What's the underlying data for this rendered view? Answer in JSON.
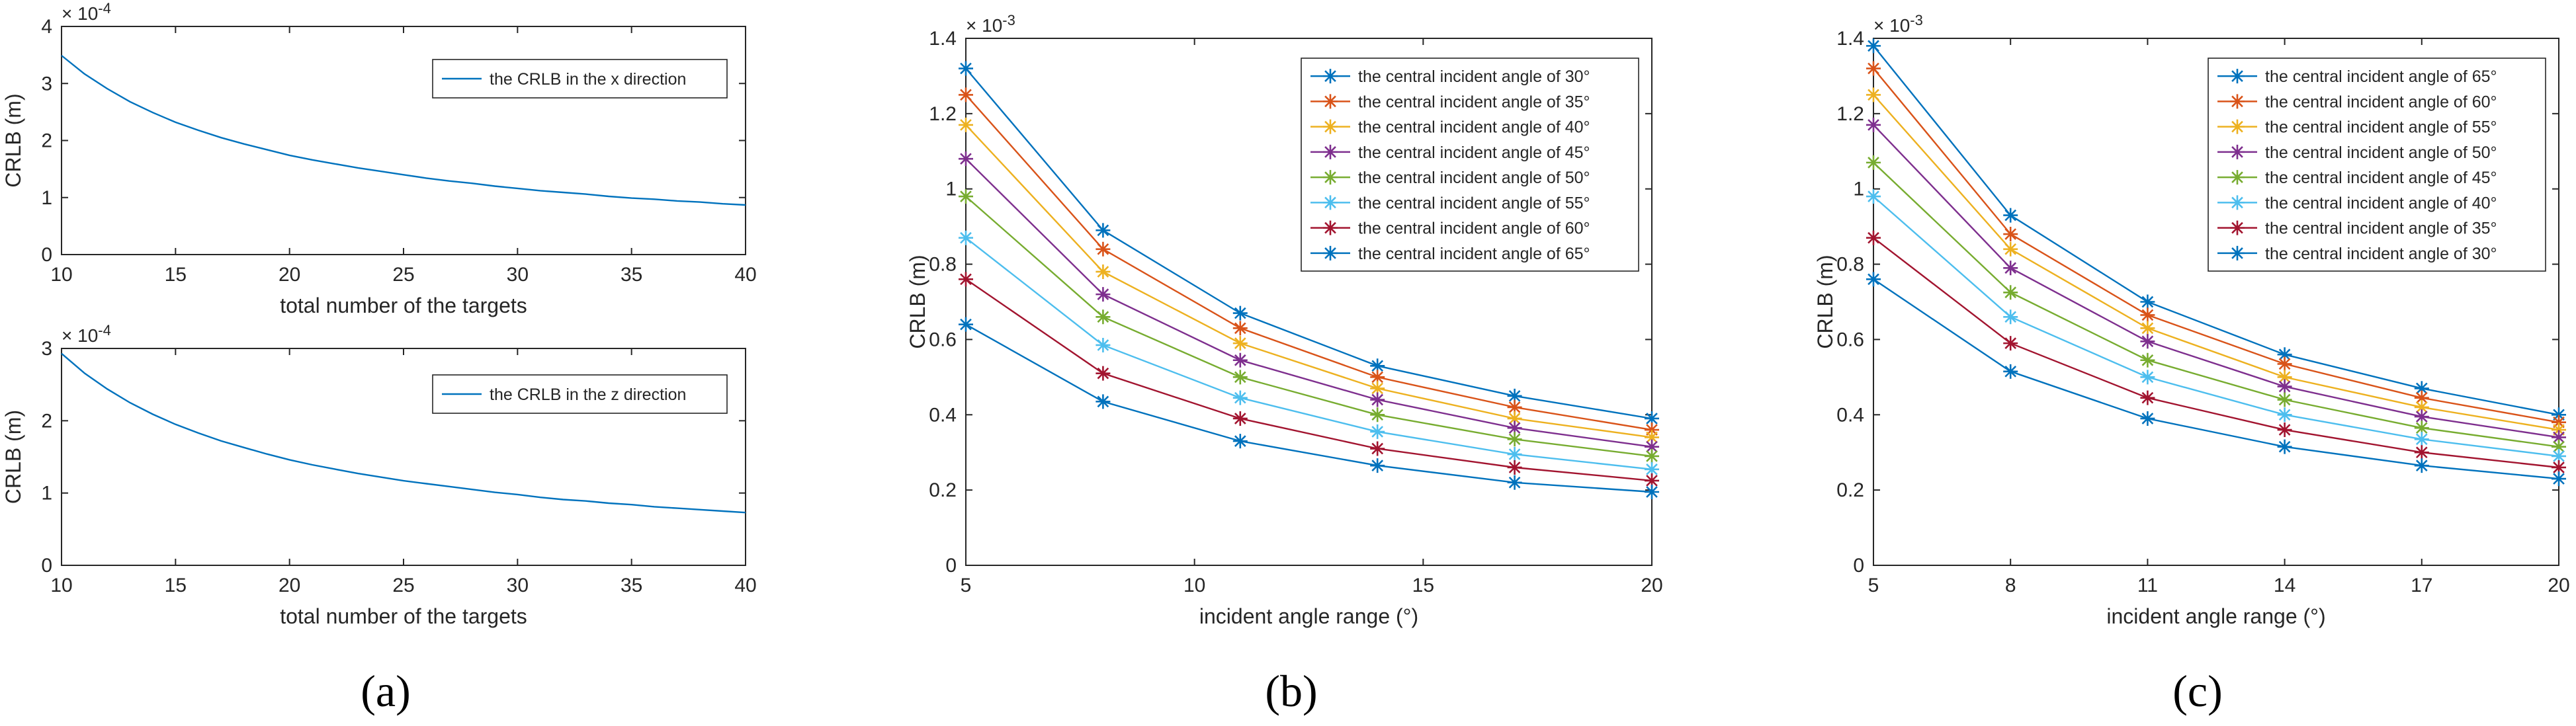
{
  "colors": {
    "c1": "#0072BD",
    "c2": "#D95319",
    "c3": "#EDB120",
    "c4": "#7E2F8E",
    "c5": "#77AC30",
    "c6": "#4DBEEE",
    "c7": "#A2142F",
    "c8": "#0072BD",
    "axis": "#262626",
    "grid": "#000000"
  },
  "panel_labels": {
    "a": "(a)",
    "b": "(b)",
    "c": "(c)"
  },
  "chart_data": [
    {
      "id": "a_top",
      "type": "line",
      "xlabel": "total number of the targets",
      "ylabel": "CRLB (m)",
      "exponent": "× 10",
      "exponent_power": "-4",
      "xlim": [
        10,
        40
      ],
      "ylim": [
        0,
        4
      ],
      "xticks": [
        "10",
        "15",
        "20",
        "25",
        "30",
        "35",
        "40"
      ],
      "yticks": [
        "0",
        "1",
        "2",
        "3",
        "4"
      ],
      "legend_position": "top-right",
      "series": [
        {
          "name": "the CRLB in the x direction",
          "x": [
            10,
            11,
            12,
            13,
            14,
            15,
            16,
            17,
            18,
            19,
            20,
            21,
            22,
            23,
            24,
            25,
            26,
            27,
            28,
            29,
            30,
            31,
            32,
            33,
            34,
            35,
            36,
            37,
            38,
            39,
            40
          ],
          "values": [
            3.49,
            3.17,
            2.91,
            2.68,
            2.49,
            2.32,
            2.18,
            2.05,
            1.94,
            1.84,
            1.74,
            1.66,
            1.59,
            1.52,
            1.46,
            1.4,
            1.34,
            1.29,
            1.25,
            1.2,
            1.16,
            1.12,
            1.09,
            1.06,
            1.02,
            0.99,
            0.97,
            0.94,
            0.92,
            0.89,
            0.87
          ]
        }
      ]
    },
    {
      "id": "a_bottom",
      "type": "line",
      "xlabel": "total number of the targets",
      "ylabel": "CRLB (m)",
      "exponent": "× 10",
      "exponent_power": "-4",
      "xlim": [
        10,
        40
      ],
      "ylim": [
        0,
        3
      ],
      "xticks": [
        "10",
        "15",
        "20",
        "25",
        "30",
        "35",
        "40"
      ],
      "yticks": [
        "0",
        "1",
        "2",
        "3"
      ],
      "legend_position": "top-right",
      "series": [
        {
          "name": "the CRLB in the z direction",
          "x": [
            10,
            11,
            12,
            13,
            14,
            15,
            16,
            17,
            18,
            19,
            20,
            21,
            22,
            23,
            24,
            25,
            26,
            27,
            28,
            29,
            30,
            31,
            32,
            33,
            34,
            35,
            36,
            37,
            38,
            39,
            40
          ],
          "values": [
            2.93,
            2.66,
            2.44,
            2.25,
            2.09,
            1.95,
            1.83,
            1.72,
            1.63,
            1.54,
            1.46,
            1.39,
            1.33,
            1.27,
            1.22,
            1.17,
            1.13,
            1.09,
            1.05,
            1.01,
            0.98,
            0.94,
            0.91,
            0.89,
            0.86,
            0.84,
            0.81,
            0.79,
            0.77,
            0.75,
            0.73
          ]
        }
      ]
    },
    {
      "id": "b",
      "type": "line",
      "xlabel": "incident angle range (°)",
      "ylabel": "CRLB (m)",
      "exponent": "× 10",
      "exponent_power": "-3",
      "xlim": [
        5,
        20
      ],
      "ylim": [
        0,
        1.4
      ],
      "x": [
        5,
        8,
        11,
        14,
        17,
        20
      ],
      "xticks": [
        "5",
        "10",
        "15",
        "20"
      ],
      "xtick_values": [
        5,
        10,
        15,
        20
      ],
      "yticks": [
        "0",
        "0.2",
        "0.4",
        "0.6",
        "0.8",
        "1",
        "1.2",
        "1.4"
      ],
      "legend_position": "top-right",
      "series": [
        {
          "name": "the central incident angle of 30°",
          "values": [
            1.32,
            0.89,
            0.67,
            0.53,
            0.45,
            0.39
          ]
        },
        {
          "name": "the central incident angle of 35°",
          "values": [
            1.25,
            0.84,
            0.63,
            0.5,
            0.42,
            0.36
          ]
        },
        {
          "name": "the central incident angle of 40°",
          "values": [
            1.17,
            0.78,
            0.59,
            0.47,
            0.39,
            0.34
          ]
        },
        {
          "name": "the central incident angle of 45°",
          "values": [
            1.08,
            0.72,
            0.545,
            0.44,
            0.365,
            0.315
          ]
        },
        {
          "name": "the central incident angle of 50°",
          "values": [
            0.98,
            0.66,
            0.5,
            0.4,
            0.335,
            0.29
          ]
        },
        {
          "name": "the central incident angle of 55°",
          "values": [
            0.87,
            0.585,
            0.445,
            0.355,
            0.295,
            0.255
          ]
        },
        {
          "name": "the central incident angle of 60°",
          "values": [
            0.76,
            0.51,
            0.39,
            0.31,
            0.26,
            0.225
          ]
        },
        {
          "name": "the central incident angle of 65°",
          "values": [
            0.64,
            0.435,
            0.33,
            0.265,
            0.22,
            0.195
          ]
        }
      ]
    },
    {
      "id": "c",
      "type": "line",
      "xlabel": "incident angle range (°)",
      "ylabel": "CRLB (m)",
      "exponent": "× 10",
      "exponent_power": "-3",
      "xlim": [
        5,
        20
      ],
      "ylim": [
        0,
        1.4
      ],
      "x": [
        5,
        8,
        11,
        14,
        17,
        20
      ],
      "xticks": [
        "5",
        "8",
        "11",
        "14",
        "17",
        "20"
      ],
      "xtick_values": [
        5,
        8,
        11,
        14,
        17,
        20
      ],
      "yticks": [
        "0",
        "0.2",
        "0.4",
        "0.6",
        "0.8",
        "1",
        "1.2",
        "1.4"
      ],
      "legend_position": "top-right",
      "series": [
        {
          "name": "the central incident angle of 65°",
          "values": [
            1.38,
            0.93,
            0.7,
            0.56,
            0.47,
            0.4
          ]
        },
        {
          "name": "the central incident angle of 60°",
          "values": [
            1.32,
            0.88,
            0.665,
            0.535,
            0.445,
            0.38
          ]
        },
        {
          "name": "the central incident angle of 55°",
          "values": [
            1.25,
            0.84,
            0.63,
            0.5,
            0.42,
            0.36
          ]
        },
        {
          "name": "the central incident angle of 50°",
          "values": [
            1.17,
            0.79,
            0.595,
            0.475,
            0.395,
            0.34
          ]
        },
        {
          "name": "the central incident angle of 45°",
          "values": [
            1.07,
            0.725,
            0.545,
            0.44,
            0.365,
            0.315
          ]
        },
        {
          "name": "the central incident angle of 40°",
          "values": [
            0.98,
            0.66,
            0.5,
            0.4,
            0.335,
            0.29
          ]
        },
        {
          "name": "the central incident angle of 35°",
          "values": [
            0.87,
            0.59,
            0.445,
            0.36,
            0.3,
            0.26
          ]
        },
        {
          "name": "the central incident angle of 30°",
          "values": [
            0.76,
            0.515,
            0.39,
            0.315,
            0.265,
            0.23
          ]
        }
      ]
    }
  ]
}
